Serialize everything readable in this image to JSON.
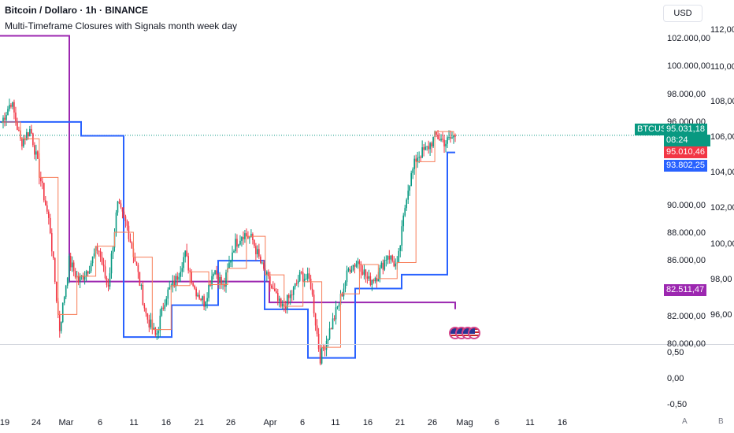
{
  "header": {
    "symbol_title": "Bitcoin / Dollaro · 1h · BINANCE",
    "indicator_title": "Multi-Timeframe Closures with Signals month week day"
  },
  "price_axis": {
    "currency": "USD",
    "ticks": [
      "102.000,00",
      "100.000,00",
      "98.000,00",
      "96.000,00",
      "90.000,00",
      "88.000,00",
      "86.000,00",
      "84.000,00",
      "82.000,00",
      "80.000,00"
    ],
    "secondary_ticks": [
      "112,00",
      "110,00",
      "108,00",
      "106,00",
      "104,00",
      "102,00",
      "100,00",
      "98,00",
      "96,00"
    ],
    "sub_ticks": [
      "0,50",
      "0,00",
      "-0,50"
    ]
  },
  "price_tags": {
    "symbol": "BTCUSD",
    "last_price": "95.031,18",
    "countdown": "08:24",
    "day_close": "95.010,46",
    "week_close": "93.802,25",
    "month_close": "82.511,47"
  },
  "time_axis": {
    "labels": [
      "19",
      "24",
      "Mar",
      "6",
      "11",
      "16",
      "21",
      "26",
      "Apr",
      "6",
      "11",
      "16",
      "21",
      "26",
      "Mag",
      "6",
      "11",
      "16"
    ]
  },
  "bottom_buttons": {
    "auto": "A",
    "log": "B"
  },
  "colors": {
    "up": "#089981",
    "down": "#f23645",
    "day_line": "#f77c57",
    "week_line": "#2962ff",
    "month_line": "#9c27b0",
    "last_tag": "#089981",
    "day_tag": "#f23645",
    "week_tag": "#2962ff",
    "month_tag": "#9c27b0"
  },
  "chart_data": {
    "type": "candlestick",
    "ylim": [
      78500,
      103500
    ],
    "series": [
      {
        "name": "BTCUSD",
        "close_path": [
          96000,
          97500,
          94500,
          95500,
          92000,
          88500,
          81000,
          86000,
          84500,
          85500,
          87000,
          84000,
          90000,
          88500,
          85500,
          82000,
          80500,
          83500,
          84500,
          86500,
          84000,
          83000,
          85500,
          84000,
          87000,
          88000,
          87500,
          85500,
          84000,
          82500,
          83500,
          85000,
          84500,
          79000,
          81000,
          83000,
          85500,
          86000,
          84500,
          85000,
          86500,
          85500,
          91000,
          93500,
          94000,
          95000,
          94500,
          95031
        ]
      },
      {
        "name": "month",
        "steps": [
          [
            0,
            102200
          ],
          [
            88,
            84500
          ],
          [
            342,
            83000
          ],
          [
            578,
            82511
          ]
        ]
      },
      {
        "name": "week",
        "steps": [
          [
            0,
            96000
          ],
          [
            103,
            95000
          ],
          [
            157,
            80500
          ],
          [
            218,
            82800
          ],
          [
            277,
            86000
          ],
          [
            336,
            82500
          ],
          [
            391,
            79000
          ],
          [
            451,
            84000
          ],
          [
            510,
            85000
          ],
          [
            568,
            93802
          ]
        ]
      }
    ]
  }
}
